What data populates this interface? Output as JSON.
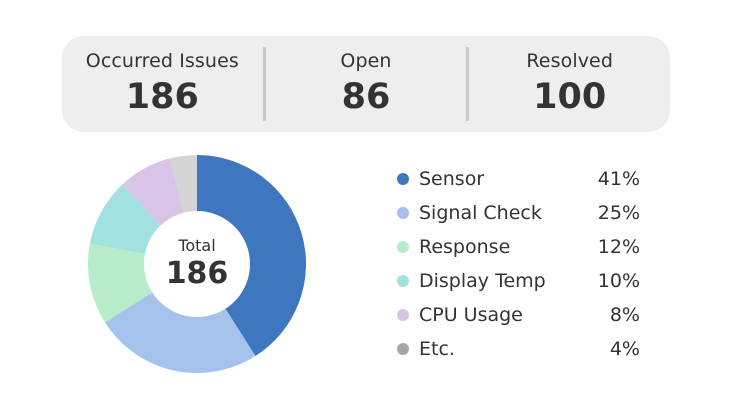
{
  "summary": {
    "occurred": {
      "label": "Occurred Issues",
      "value": "186"
    },
    "open": {
      "label": "Open",
      "value": "86"
    },
    "resolved": {
      "label": "Resolved",
      "value": "100"
    }
  },
  "donut_center": {
    "title": "Total",
    "value": "186"
  },
  "chart_data": {
    "type": "pie",
    "title": "",
    "total": 186,
    "labels": [
      "Sensor",
      "Signal Check",
      "Response",
      "Display Temp",
      "CPU Usage",
      "Etc."
    ],
    "values": [
      41,
      25,
      12,
      10,
      8,
      4
    ],
    "value_labels": [
      "41%",
      "25%",
      "12%",
      "10%",
      "8%",
      "4%"
    ],
    "colors": [
      "#3f76c0",
      "#a4c2ec",
      "#b6ecc9",
      "#a1e2e0",
      "#d8c4e6",
      "#d4d4d4"
    ],
    "donut": true,
    "start": "top",
    "direction": "clockwise",
    "legend_position": "right"
  }
}
